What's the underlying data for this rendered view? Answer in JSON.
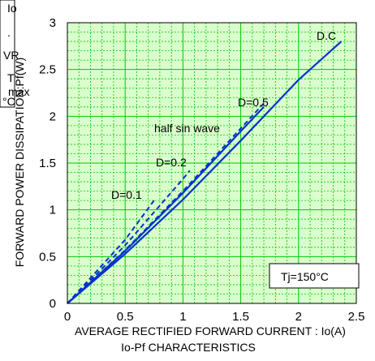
{
  "chart_data": {
    "type": "line",
    "caption": "Io-Pf  CHARACTERISTICS",
    "xlabel": "AVERAGE RECTIFIED FORWARD CURRENT : Io(A)",
    "ylabel": "FORWARD POWER DISSIPATION:Pf(W)",
    "xlim": [
      0,
      2.5
    ],
    "ylim": [
      0,
      3
    ],
    "x_ticks": [
      "0",
      "0.5",
      "1",
      "1.5",
      "2",
      "2.5"
    ],
    "y_ticks": [
      "0",
      "0.5",
      "1",
      "1.5",
      "2",
      "2.5",
      "3"
    ],
    "grid": true,
    "grid_color": "#00c800",
    "background": "#d9ffcc",
    "line_color": "#0033cc",
    "condition": "Tj=150°C",
    "series": [
      {
        "name": "D.C",
        "style": "solid",
        "x": [
          0,
          0.5,
          1.0,
          1.5,
          2.0,
          2.37
        ],
        "y": [
          0,
          0.53,
          1.11,
          1.74,
          2.39,
          2.8
        ]
      },
      {
        "name": "half sin wave",
        "style": "solid",
        "x": [
          0,
          0.5,
          1.0,
          1.5,
          1.7
        ],
        "y": [
          0,
          0.56,
          1.18,
          1.84,
          2.1
        ]
      },
      {
        "name": "D=0.5",
        "style": "dashed",
        "x": [
          0,
          0.5,
          1.0,
          1.5,
          1.7
        ],
        "y": [
          0,
          0.57,
          1.2,
          1.87,
          2.14
        ]
      },
      {
        "name": "D=0.2",
        "style": "dashed",
        "x": [
          0,
          0.5,
          1.0,
          1.06
        ],
        "y": [
          0,
          0.62,
          1.33,
          1.42
        ]
      },
      {
        "name": "D=0.1",
        "style": "dashed",
        "x": [
          0,
          0.5,
          0.75
        ],
        "y": [
          0,
          0.68,
          1.1
        ]
      }
    ],
    "legend_left_fragments": [
      "Io",
      ".",
      "VR",
      "T",
      "max",
      "°C"
    ]
  }
}
